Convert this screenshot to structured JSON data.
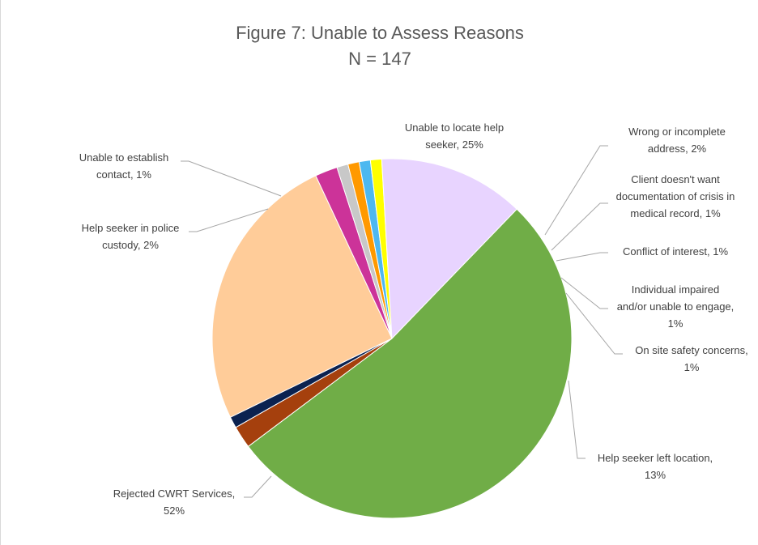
{
  "chart_data": {
    "type": "pie",
    "title": "Figure 7: Unable to Assess Reasons",
    "subtitle": "N = 147",
    "slices": [
      {
        "label_lines": [
          "Unable to locate help",
          "seeker, 25%"
        ],
        "value": 25,
        "color": "#FFCC99"
      },
      {
        "label_lines": [
          "Wrong or incomplete",
          "address, 2%"
        ],
        "value": 2,
        "color": "#CC3399"
      },
      {
        "label_lines": [
          "Client doesn't want",
          "documentation of crisis in",
          "medical record, 1%"
        ],
        "value": 1,
        "color": "#C8C8C8"
      },
      {
        "label_lines": [
          "Conflict of interest, 1%"
        ],
        "value": 1,
        "color": "#FF9900"
      },
      {
        "label_lines": [
          "Individual impaired",
          "and/or unable to engage,",
          "1%"
        ],
        "value": 1,
        "color": "#4DB8F0"
      },
      {
        "label_lines": [
          "On site safety concerns,",
          "1%"
        ],
        "value": 1,
        "color": "#FFFF00"
      },
      {
        "label_lines": [
          "Help seeker left location,",
          "13%"
        ],
        "value": 13,
        "color": "#E8D4FF"
      },
      {
        "label_lines": [
          "Rejected CWRT Services,",
          "52%"
        ],
        "value": 52,
        "color": "#70AD47"
      },
      {
        "label_lines": [
          "Help seeker in police",
          "custody, 2%"
        ],
        "value": 2,
        "color": "#A5400D"
      },
      {
        "label_lines": [
          "Unable to establish",
          "contact, 1%"
        ],
        "value": 1,
        "color": "#0B2250"
      }
    ]
  }
}
